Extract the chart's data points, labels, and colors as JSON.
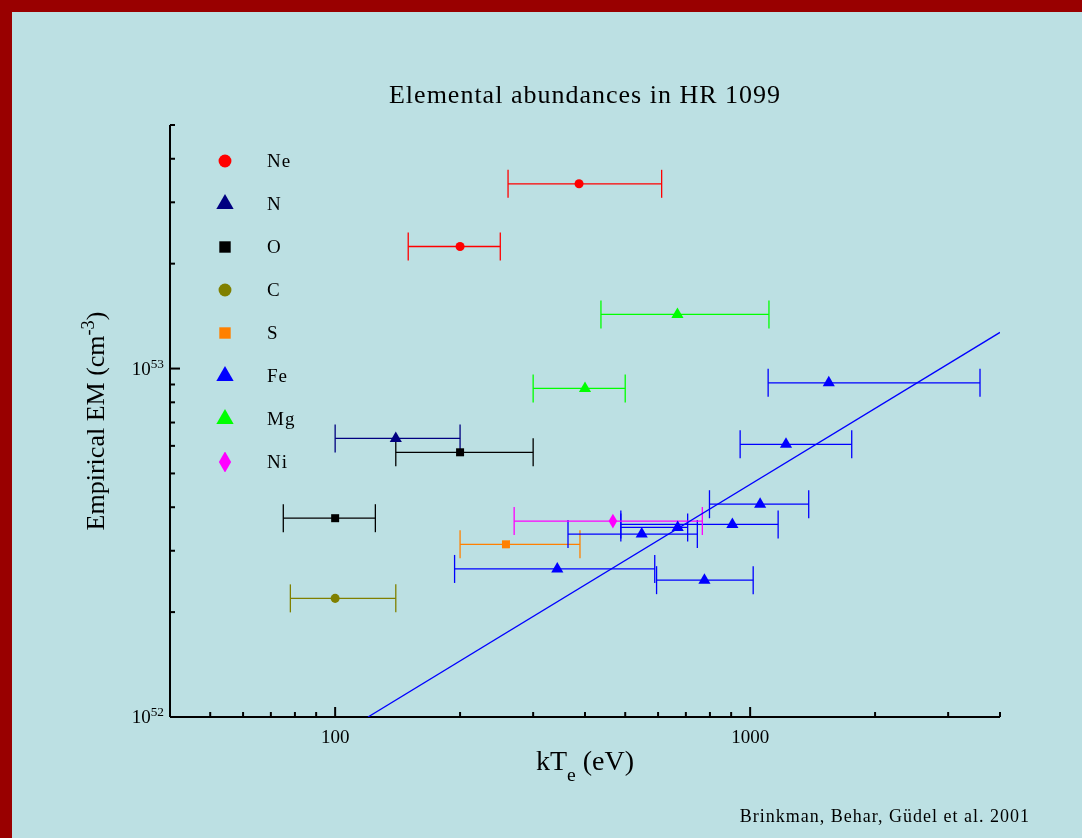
{
  "chart_data": {
    "type": "scatter",
    "title": "Elemental abundances in HR 1099",
    "xlabel": "kT$_{e}$ (eV)",
    "ylabel": "Empirical EM  (cm$^{-3}$)",
    "annotations": [
      "Brinkman, Behar, Güdel et al. 2001"
    ],
    "log": "xy",
    "grid": false,
    "legend": "top left",
    "xlim": [
      40,
      4000
    ],
    "ylim": [
      1e+52,
      5e+53
    ],
    "xticks": [
      {
        "value": 40,
        "label": null
      },
      {
        "value": 50,
        "label": null
      },
      {
        "value": 60,
        "label": null
      },
      {
        "value": 70,
        "label": null
      },
      {
        "value": 80,
        "label": null
      },
      {
        "value": 90,
        "label": null
      },
      100,
      {
        "value": 200,
        "label": null
      },
      {
        "value": 300,
        "label": null
      },
      {
        "value": 400,
        "label": null
      },
      {
        "value": 500,
        "label": null
      },
      {
        "value": 600,
        "label": null
      },
      {
        "value": 700,
        "label": null
      },
      {
        "value": 800,
        "label": null
      },
      {
        "value": 900,
        "label": null
      },
      1000,
      {
        "value": 2000,
        "label": null
      },
      {
        "value": 3000,
        "label": null
      },
      {
        "value": 4000,
        "label": null
      }
    ],
    "yticks": [
      {
        "value": 1e+52,
        "label": "10$^{52}$"
      },
      {
        "value": 2e+52,
        "label": null
      },
      {
        "value": 3e+52,
        "label": null
      },
      {
        "value": 4e+52,
        "label": null
      },
      {
        "value": 5e+52,
        "label": null
      },
      {
        "value": 6e+52,
        "label": null
      },
      {
        "value": 7e+52,
        "label": null
      },
      {
        "value": 8e+52,
        "label": null
      },
      {
        "value": 9e+52,
        "label": null
      },
      {
        "value": 1e+53,
        "label": "10$^{53}$"
      },
      {
        "value": 2e+53,
        "label": null
      },
      {
        "value": 3e+53,
        "label": null
      },
      {
        "value": 4e+53,
        "label": null
      },
      {
        "value": 5e+53,
        "label": null
      }
    ],
    "series": [
      {
        "type": "scatter",
        "name": "Ne",
        "color": "#ff0000",
        "marker": "circle",
        "x": [
          387,
          200
        ],
        "values": [
          3.39e+53,
          2.24e+53
        ],
        "xerrors": [
          [
            261,
            612
          ],
          [
            150,
            250
          ]
        ]
      },
      {
        "type": "scatter",
        "name": "N",
        "color": "#000080",
        "marker": "triangle",
        "x": [
          140
        ],
        "values": [
          6.3e+52
        ],
        "xerrors": [
          [
            100,
            200
          ]
        ]
      },
      {
        "type": "scatter",
        "name": "O",
        "color": "#000000",
        "marker": "square",
        "x": [
          200,
          100
        ],
        "values": [
          5.75e+52,
          3.72e+52
        ],
        "xerrors": [
          [
            140,
            300
          ],
          [
            75,
            125
          ]
        ]
      },
      {
        "type": "scatter",
        "name": "C",
        "color": "#808000",
        "marker": "circle",
        "x": [
          100
        ],
        "values": [
          2.19e+52
        ],
        "xerrors": [
          [
            78,
            140
          ]
        ]
      },
      {
        "type": "scatter",
        "name": "S",
        "color": "#ff8000",
        "marker": "square",
        "x": [
          258
        ],
        "values": [
          3.13e+52
        ],
        "xerrors": [
          [
            200,
            389
          ]
        ]
      },
      {
        "type": "scatter",
        "name": "Fe",
        "color": "#0000ff",
        "marker": "triangle",
        "x": [
          1547,
          1220,
          1057,
          906,
          669,
          548,
          343,
          776
        ],
        "values": [
          9.1e+52,
          6.06e+52,
          4.08e+52,
          3.57e+52,
          3.5e+52,
          3.35e+52,
          2.66e+52,
          2.47e+52
        ],
        "xerrors": [
          [
            1105,
            3580
          ],
          [
            946,
            1757
          ],
          [
            798,
            1384
          ],
          [
            488,
            1168
          ],
          [
            488,
            707
          ],
          [
            364,
            746
          ],
          [
            194,
            589
          ],
          [
            595,
            1017
          ]
        ]
      },
      {
        "type": "scatter",
        "name": "Mg",
        "color": "#00ff00",
        "marker": "triangle",
        "x": [
          668,
          400
        ],
        "values": [
          1.43e+53,
          8.77e+52
        ],
        "xerrors": [
          [
            437,
            1110
          ],
          [
            300,
            500
          ]
        ]
      },
      {
        "type": "scatter",
        "name": "Ni",
        "color": "#ff00ff",
        "marker": "diamond",
        "x": [
          467
        ],
        "values": [
          3.65e+52
        ],
        "xerrors": [
          [
            270,
            767
          ]
        ]
      },
      {
        "type": "line",
        "color": "#0000ff",
        "x": [
          120,
          4000
        ],
        "values": [
          1e+52,
          1.27e+53
        ]
      }
    ]
  }
}
